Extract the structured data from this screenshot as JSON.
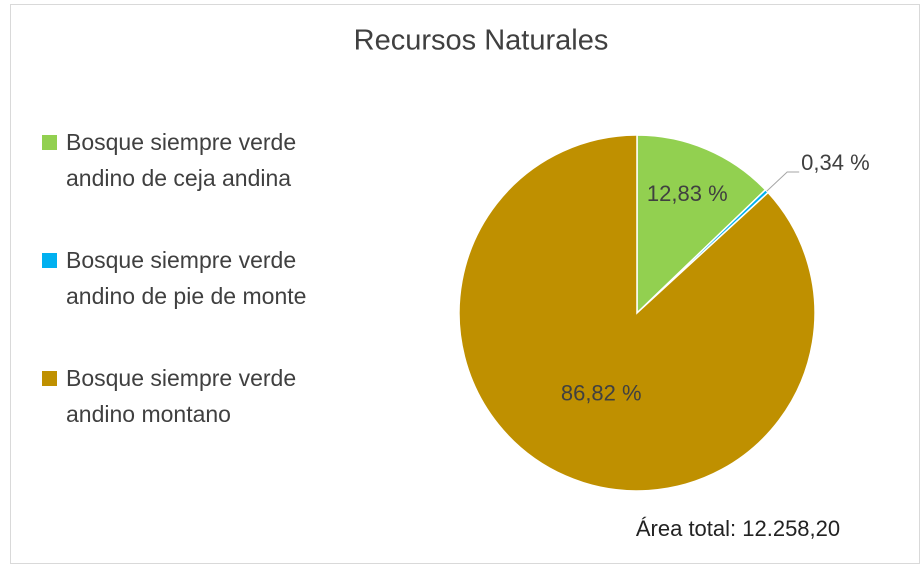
{
  "chart_data": {
    "type": "pie",
    "title": "Recursos Naturales",
    "categories": [
      "Bosque siempre verde andino de ceja andina",
      "Bosque siempre verde andino de pie de monte",
      "Bosque siempre verde andino montano"
    ],
    "values": [
      12.83,
      0.34,
      86.82
    ],
    "value_labels": [
      "12,83 %",
      "0,34 %",
      "86,82 %"
    ],
    "colors": [
      "#92d050",
      "#00b0f0",
      "#bf9000"
    ],
    "legend": "left",
    "annotation": "Área total: 12.258,20"
  }
}
